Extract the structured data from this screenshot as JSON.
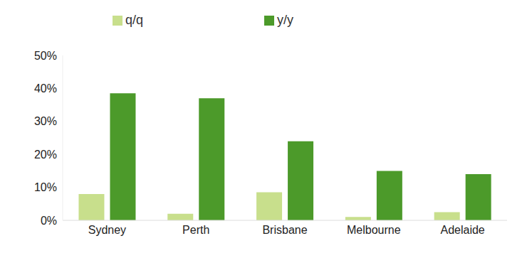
{
  "chart_data": {
    "type": "bar",
    "categories": [
      "Sydney",
      "Perth",
      "Brisbane",
      "Melbourne",
      "Adelaide"
    ],
    "series": [
      {
        "name": "q/q",
        "color": "#c8df8c",
        "values": [
          8,
          2,
          8.5,
          1,
          2.5
        ]
      },
      {
        "name": "y/y",
        "color": "#4c9a2a",
        "values": [
          38.5,
          37,
          24,
          15,
          14
        ]
      }
    ],
    "ylim": [
      0,
      50
    ],
    "yticks": [
      {
        "value": 0,
        "label": "0%"
      },
      {
        "value": 10,
        "label": "10%"
      },
      {
        "value": 20,
        "label": "20%"
      },
      {
        "value": 30,
        "label": "30%"
      },
      {
        "value": 40,
        "label": "40%"
      },
      {
        "value": 50,
        "label": "50%"
      }
    ],
    "grid": false,
    "legend": "top"
  }
}
